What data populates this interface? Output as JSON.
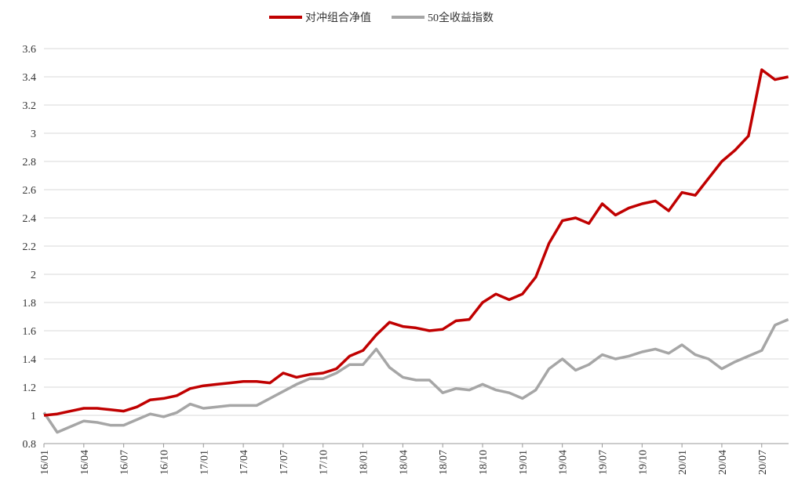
{
  "chart_data": {
    "type": "line",
    "categories": [
      "16/01",
      null,
      null,
      "16/04",
      null,
      null,
      "16/07",
      null,
      null,
      "16/10",
      null,
      null,
      "17/01",
      null,
      null,
      "17/04",
      null,
      null,
      "17/07",
      null,
      null,
      "17/10",
      null,
      null,
      "18/01",
      null,
      null,
      "18/04",
      null,
      null,
      "18/07",
      null,
      null,
      "18/10",
      null,
      null,
      "19/01",
      null,
      null,
      "19/04",
      null,
      null,
      "19/07",
      null,
      null,
      "19/10",
      null,
      null,
      "20/01",
      null,
      null,
      "20/04",
      null,
      null,
      "20/07",
      null,
      null
    ],
    "series": [
      {
        "name": "对冲组合净值",
        "color": "#c00000",
        "values": [
          1.0,
          1.01,
          1.03,
          1.05,
          1.05,
          1.04,
          1.03,
          1.06,
          1.11,
          1.12,
          1.14,
          1.19,
          1.21,
          1.22,
          1.23,
          1.24,
          1.24,
          1.23,
          1.3,
          1.27,
          1.29,
          1.3,
          1.33,
          1.42,
          1.46,
          1.57,
          1.66,
          1.63,
          1.62,
          1.6,
          1.61,
          1.67,
          1.68,
          1.8,
          1.86,
          1.82,
          1.86,
          1.98,
          2.22,
          2.38,
          2.4,
          2.36,
          2.5,
          2.42,
          2.47,
          2.5,
          2.52,
          2.45,
          2.58,
          2.56,
          2.68,
          2.8,
          2.88,
          2.98,
          3.45,
          3.38,
          3.4
        ]
      },
      {
        "name": "50全收益指数",
        "color": "#a6a6a6",
        "values": [
          1.02,
          0.88,
          0.92,
          0.96,
          0.95,
          0.93,
          0.93,
          0.97,
          1.01,
          0.99,
          1.02,
          1.08,
          1.05,
          1.06,
          1.07,
          1.07,
          1.07,
          1.12,
          1.17,
          1.22,
          1.26,
          1.26,
          1.3,
          1.36,
          1.36,
          1.47,
          1.34,
          1.27,
          1.25,
          1.25,
          1.16,
          1.19,
          1.18,
          1.22,
          1.18,
          1.16,
          1.12,
          1.18,
          1.33,
          1.4,
          1.32,
          1.36,
          1.43,
          1.4,
          1.42,
          1.45,
          1.47,
          1.44,
          1.5,
          1.43,
          1.4,
          1.33,
          1.38,
          1.42,
          1.46,
          1.64,
          1.68
        ]
      }
    ],
    "ylim": [
      0.8,
      3.6
    ],
    "yticks": [
      0.8,
      1,
      1.2,
      1.4,
      1.6,
      1.8,
      2,
      2.2,
      2.4,
      2.6,
      2.8,
      3,
      3.2,
      3.4,
      3.6
    ],
    "grid": true,
    "legend": "top"
  }
}
